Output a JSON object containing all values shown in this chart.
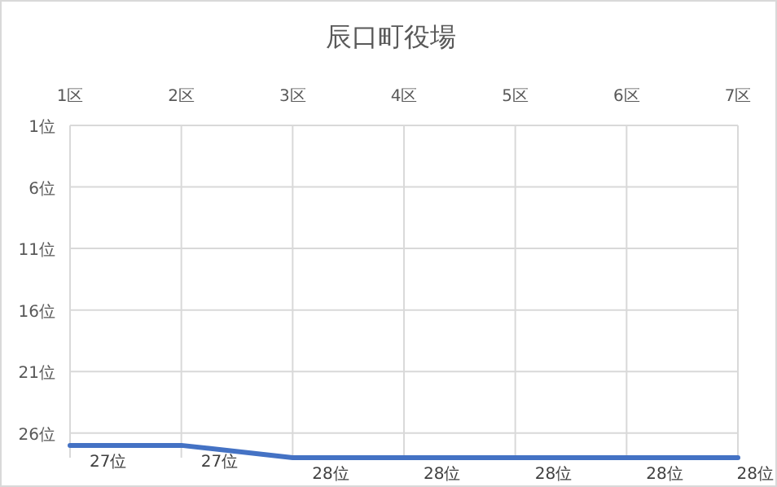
{
  "chart_data": {
    "type": "line",
    "title": "辰口町役場",
    "categories": [
      "1区",
      "2区",
      "3区",
      "4区",
      "5区",
      "6区",
      "7区"
    ],
    "series": [
      {
        "color": "#4472c4",
        "values": [
          27,
          27,
          28,
          28,
          28,
          28,
          28
        ],
        "value_labels": [
          "27位",
          "27位",
          "28位",
          "28位",
          "28位",
          "28位",
          "28位"
        ]
      }
    ],
    "ylim": [
      28,
      1
    ],
    "yticks": [
      {
        "value": 1,
        "label": "1位"
      },
      {
        "value": 6,
        "label": "6位"
      },
      {
        "value": 11,
        "label": "11位"
      },
      {
        "value": 16,
        "label": "16位"
      },
      {
        "value": 21,
        "label": "21位"
      },
      {
        "value": 26,
        "label": "26位"
      }
    ],
    "grid": true,
    "marker": "none",
    "line_style": "solid"
  }
}
